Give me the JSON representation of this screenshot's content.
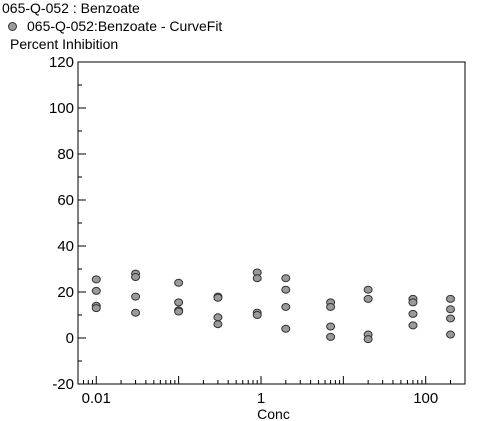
{
  "chart_data": {
    "type": "scatter",
    "title": "065-Q-052  : Benzoate",
    "legend": [
      {
        "label": "065-Q-052:Benzoate - CurveFit",
        "color": "#9a9a9a"
      }
    ],
    "ylabel": "Percent Inhibition",
    "xlabel": "Conc",
    "x_scale": "log",
    "xlim": [
      0.006,
      300
    ],
    "ylim": [
      -20,
      120
    ],
    "yticks": [
      -20,
      0,
      20,
      40,
      60,
      80,
      100,
      120
    ],
    "yticklabels": [
      "-20",
      "0",
      "20",
      "40",
      "60",
      "80",
      "100",
      "120"
    ],
    "xticks": [
      0.01,
      1,
      100
    ],
    "xticklabels": [
      "0.01",
      "1",
      "100"
    ],
    "grid": false,
    "series": [
      {
        "name": "065-Q-052:Benzoate - CurveFit",
        "points": [
          {
            "x": 0.01,
            "y": 25.5
          },
          {
            "x": 0.01,
            "y": 20.5
          },
          {
            "x": 0.01,
            "y": 14.0
          },
          {
            "x": 0.01,
            "y": 13.0
          },
          {
            "x": 0.03,
            "y": 28.0
          },
          {
            "x": 0.03,
            "y": 26.5
          },
          {
            "x": 0.03,
            "y": 18.0
          },
          {
            "x": 0.03,
            "y": 11.0
          },
          {
            "x": 0.1,
            "y": 24.0
          },
          {
            "x": 0.1,
            "y": 15.5
          },
          {
            "x": 0.1,
            "y": 12.0
          },
          {
            "x": 0.1,
            "y": 11.5
          },
          {
            "x": 0.3,
            "y": 18.0
          },
          {
            "x": 0.3,
            "y": 17.5
          },
          {
            "x": 0.3,
            "y": 9.0
          },
          {
            "x": 0.3,
            "y": 6.0
          },
          {
            "x": 0.9,
            "y": 28.5
          },
          {
            "x": 0.9,
            "y": 26.0
          },
          {
            "x": 0.9,
            "y": 11.0
          },
          {
            "x": 0.9,
            "y": 10.0
          },
          {
            "x": 2.0,
            "y": 26.0
          },
          {
            "x": 2.0,
            "y": 21.0
          },
          {
            "x": 2.0,
            "y": 13.5
          },
          {
            "x": 2.0,
            "y": 4.0
          },
          {
            "x": 7.0,
            "y": 15.5
          },
          {
            "x": 7.0,
            "y": 13.5
          },
          {
            "x": 7.0,
            "y": 5.0
          },
          {
            "x": 7.0,
            "y": 0.5
          },
          {
            "x": 20.0,
            "y": 21.0
          },
          {
            "x": 20.0,
            "y": 17.0
          },
          {
            "x": 20.0,
            "y": 1.5
          },
          {
            "x": 20.0,
            "y": -0.5
          },
          {
            "x": 70.0,
            "y": 17.0
          },
          {
            "x": 70.0,
            "y": 15.5
          },
          {
            "x": 70.0,
            "y": 10.5
          },
          {
            "x": 70.0,
            "y": 5.5
          },
          {
            "x": 200.0,
            "y": 17.0
          },
          {
            "x": 200.0,
            "y": 12.5
          },
          {
            "x": 200.0,
            "y": 8.5
          },
          {
            "x": 200.0,
            "y": 1.5
          }
        ]
      }
    ]
  }
}
